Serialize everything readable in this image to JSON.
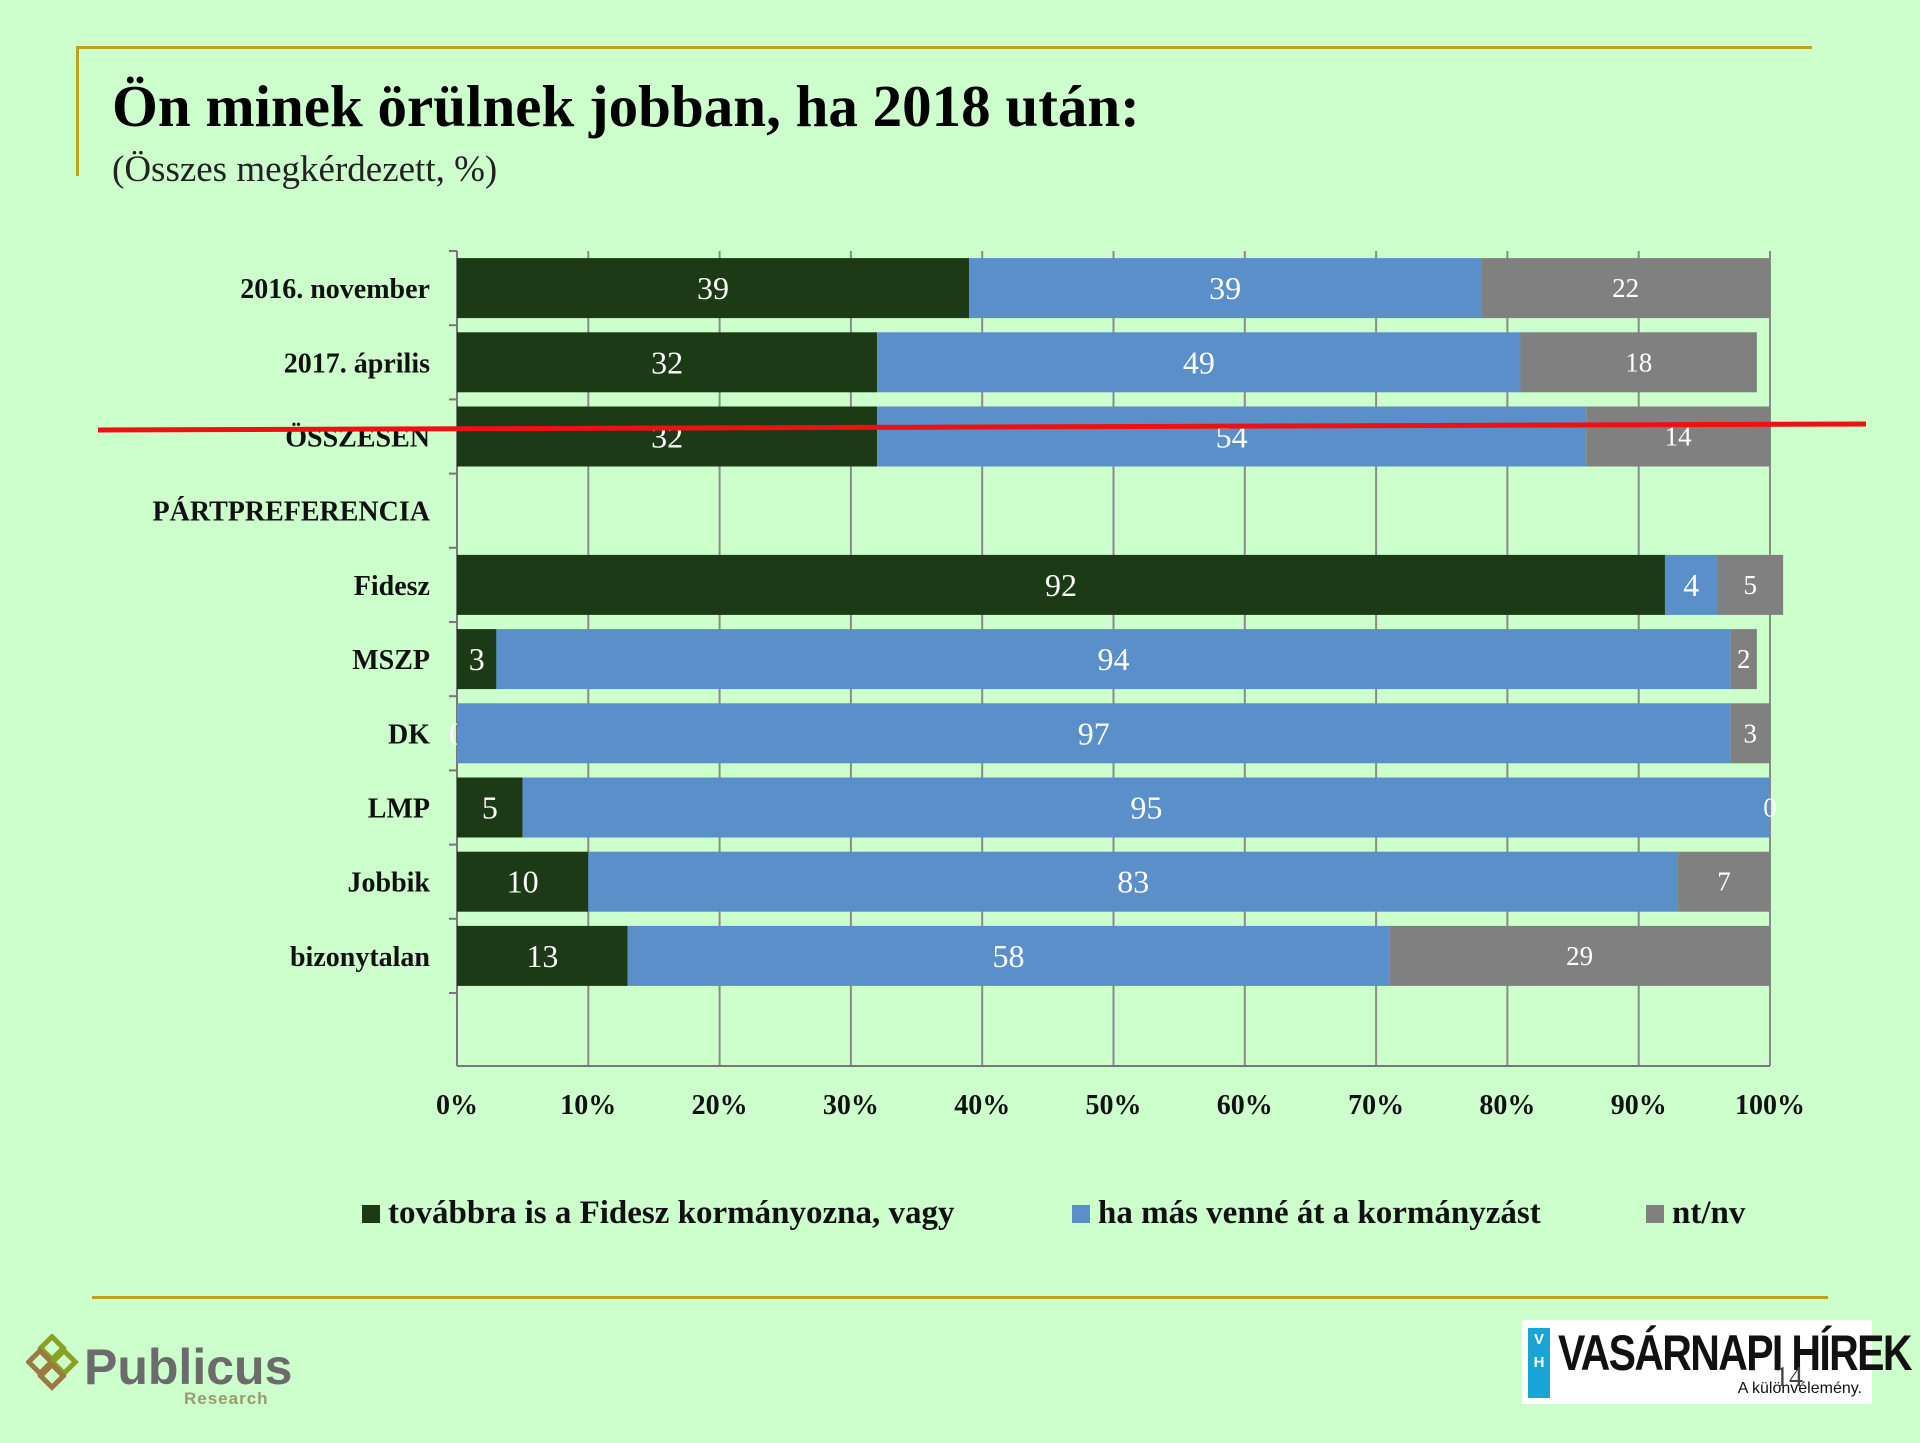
{
  "title": "Ön minek örülnek jobban, ha 2018 után:",
  "subtitle": "(Összes megkérdezett, %)",
  "colors": {
    "fidesz": "#1c3a16",
    "other": "#5a8fca",
    "ntnv": "#808080",
    "divider": "#ee1111",
    "frame": "#c0a020"
  },
  "chart_data": {
    "type": "bar",
    "orientation": "horizontal",
    "stacked": "percent",
    "categories": [
      "2016. november",
      "2017. április",
      "ÖSSZESEN",
      "PÁRTPREFERENCIA",
      "Fidesz",
      "MSZP",
      "DK",
      "LMP",
      "Jobbik",
      "bizonytalan"
    ],
    "series": [
      {
        "name": "továbbra is a Fidesz kormányozna, vagy",
        "values": [
          39,
          32,
          32,
          null,
          92,
          3,
          0,
          5,
          10,
          13
        ]
      },
      {
        "name": "ha más venné át a kormányzást",
        "values": [
          39,
          49,
          54,
          null,
          4,
          94,
          97,
          95,
          83,
          58
        ]
      },
      {
        "name": "nt/nv",
        "values": [
          22,
          18,
          14,
          null,
          5,
          2,
          3,
          0,
          7,
          29
        ]
      }
    ],
    "xticks": [
      "0%",
      "10%",
      "20%",
      "30%",
      "40%",
      "50%",
      "60%",
      "70%",
      "80%",
      "90%",
      "100%"
    ],
    "xlim": [
      0,
      100
    ],
    "grid": true,
    "legend_position": "bottom"
  },
  "legend": [
    {
      "label": "továbbra is a Fidesz kormányozna, vagy",
      "color": "#1c3a16"
    },
    {
      "label": "ha más venné át a kormányzást",
      "color": "#5a8fca"
    },
    {
      "label": "nt/nv",
      "color": "#808080"
    }
  ],
  "logos": {
    "publicus_name": "Publicus",
    "publicus_sub": "Research",
    "vh_badge": "V H",
    "vh_name": "VASÁRNAPI HÍREK",
    "vh_tagline": "A különvélemény."
  },
  "page_number": "14"
}
